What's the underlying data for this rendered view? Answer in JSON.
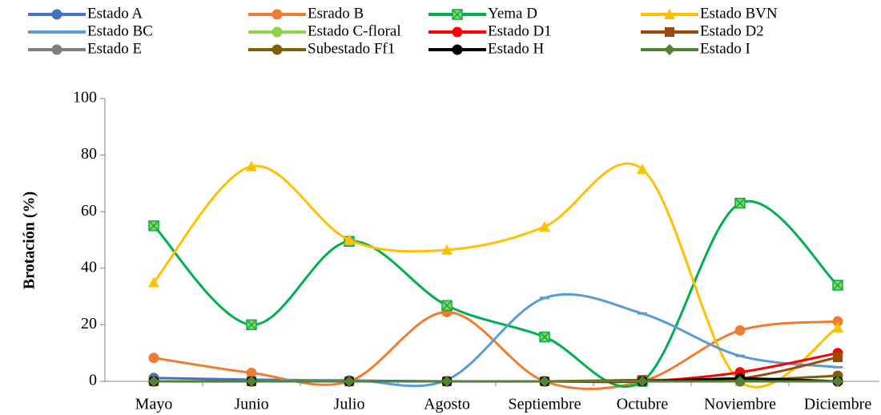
{
  "chart_data": {
    "type": "line",
    "smooth": true,
    "y_label": "Brotación (%)",
    "categories": [
      "Mayo",
      "Junio",
      "Julio",
      "Agosto",
      "Septiembre",
      "Octubre",
      "Noviembre",
      "Diciembre"
    ],
    "ylim": [
      0,
      100
    ],
    "yticks": [
      0,
      20,
      40,
      60,
      80,
      100
    ],
    "grid": false,
    "legend": "top",
    "series": [
      {
        "name": "Estado A",
        "color": "#4472c4",
        "marker": "circle",
        "values": [
          1.2,
          0.6,
          0.3,
          0,
          0,
          0,
          0.3,
          0
        ]
      },
      {
        "name": "Esrado B",
        "color": "#ed7d31",
        "marker": "circle",
        "values": [
          8.3,
          3,
          0,
          24.5,
          0,
          0,
          18,
          21.2
        ]
      },
      {
        "name": "Yema D",
        "color": "#00b050",
        "marker": "xsquare",
        "values": [
          55,
          20,
          49.5,
          26.8,
          15.7,
          0,
          63,
          34
        ]
      },
      {
        "name": "Estado BVN",
        "color": "#ffc000",
        "marker": "triangle",
        "values": [
          35,
          76,
          50,
          46.5,
          54.7,
          75,
          0,
          19
        ]
      },
      {
        "name": "Estado BC",
        "color": "#5b9bd5",
        "marker": "dash",
        "values": [
          0,
          0,
          0.5,
          0.5,
          29.5,
          24,
          9,
          5
        ]
      },
      {
        "name": "Estado C-floral",
        "color": "#92d050",
        "marker": "circle",
        "values": [
          0,
          0,
          0,
          0,
          0,
          0,
          0,
          0
        ]
      },
      {
        "name": "Estado D1",
        "color": "#ff0000",
        "marker": "circle",
        "values": [
          0,
          0,
          0,
          0,
          0,
          0,
          3.2,
          10
        ]
      },
      {
        "name": "Estado D2",
        "color": "#9e480e",
        "marker": "square",
        "values": [
          0,
          0,
          0,
          0,
          0,
          0.5,
          1,
          8.5
        ]
      },
      {
        "name": "Estado E",
        "color": "#7f7f7f",
        "marker": "circle",
        "values": [
          0,
          0,
          0,
          0,
          0,
          0,
          0,
          0
        ]
      },
      {
        "name": "Subestado Ff1",
        "color": "#806000",
        "marker": "circle",
        "values": [
          0,
          0,
          0,
          0,
          0,
          0,
          0.3,
          2
        ]
      },
      {
        "name": "Estado H",
        "color": "#000000",
        "marker": "circle",
        "values": [
          0,
          0,
          0,
          0,
          0,
          0,
          1,
          0
        ]
      },
      {
        "name": "Estado I",
        "color": "#548235",
        "marker": "diamond",
        "values": [
          0,
          0,
          0,
          0,
          0,
          0,
          0,
          0
        ]
      }
    ]
  }
}
